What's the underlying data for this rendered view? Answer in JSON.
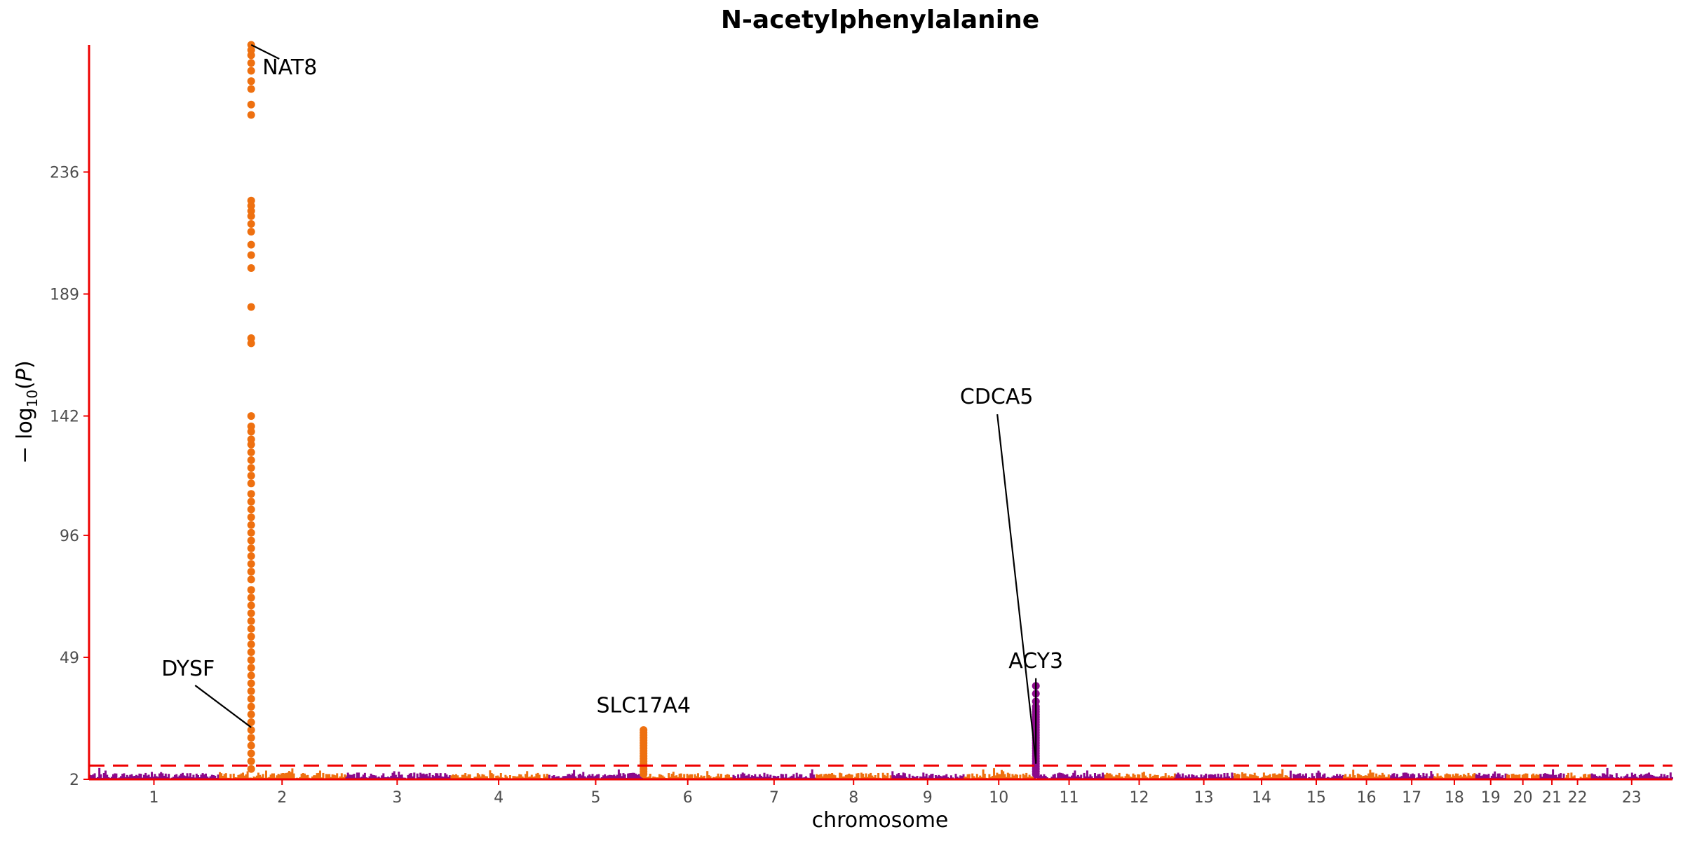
{
  "chart_data": {
    "type": "scatter",
    "title": "N-acetylphenylalanine",
    "xlabel": "chromosome",
    "ylabel": "-log10(P)",
    "ylim": [
      2,
      285
    ],
    "yticks": [
      2,
      49,
      96,
      142,
      189,
      236
    ],
    "significance_line": 7.3,
    "grid": false,
    "colors": {
      "odd": "#8b0a8b",
      "even": "#ee7010",
      "axis": "#ee0000",
      "threshold": "#ee0000"
    },
    "chromosomes": [
      "1",
      "2",
      "3",
      "4",
      "5",
      "6",
      "7",
      "8",
      "9",
      "10",
      "11",
      "12",
      "13",
      "14",
      "15",
      "16",
      "17",
      "18",
      "19",
      "20",
      "21",
      "22",
      "23"
    ],
    "chromosome_spans": [
      [
        0,
        248
      ],
      [
        248,
        490
      ],
      [
        490,
        688
      ],
      [
        688,
        878
      ],
      [
        878,
        1059
      ],
      [
        1059,
        1230
      ],
      [
        1230,
        1389
      ],
      [
        1389,
        1534
      ],
      [
        1534,
        1672
      ],
      [
        1672,
        1806
      ],
      [
        1806,
        1941
      ],
      [
        1941,
        2074
      ],
      [
        2074,
        2188
      ],
      [
        2188,
        2295
      ],
      [
        2295,
        2397
      ],
      [
        2397,
        2487
      ],
      [
        2487,
        2570
      ],
      [
        2570,
        2650
      ],
      [
        2650,
        2709
      ],
      [
        2709,
        2773
      ],
      [
        2773,
        2820
      ],
      [
        2820,
        2871
      ],
      [
        2871,
        3027
      ]
    ],
    "peaks": [
      {
        "chromosome": "2",
        "position": 310,
        "max": 285,
        "values": [
          285,
          283,
          281,
          278,
          275,
          271,
          268,
          262,
          258,
          225,
          223,
          221,
          219,
          216,
          213,
          208,
          204,
          199,
          184,
          172,
          170,
          142,
          138,
          136,
          133,
          131,
          128,
          125,
          122,
          119,
          116,
          112,
          109,
          106,
          103,
          100,
          97,
          94,
          91,
          88,
          85,
          82,
          79,
          75,
          72,
          69,
          66,
          63,
          60,
          57,
          54,
          51,
          48,
          45,
          42,
          39,
          36,
          33,
          30,
          27,
          24,
          21,
          18,
          15,
          12,
          9,
          6
        ]
      },
      {
        "chromosome": "6",
        "position": 1060,
        "max": 21,
        "values": [
          21,
          20,
          19,
          18,
          17,
          16,
          15,
          14,
          13,
          12,
          11,
          10,
          9,
          8,
          7,
          6,
          5,
          4
        ]
      },
      {
        "chromosome": "11",
        "position": 1810,
        "max": 38,
        "values": [
          38,
          35,
          32,
          30,
          29,
          28,
          27,
          26,
          25,
          24,
          23,
          22,
          21,
          20,
          19,
          18,
          17,
          16,
          15,
          14,
          13,
          12,
          11,
          10,
          9,
          8,
          7,
          6,
          5,
          4
        ]
      }
    ],
    "annotations": [
      {
        "label": "NAT8",
        "chromosome": "2",
        "target_y": 285
      },
      {
        "label": "DYSF",
        "chromosome": "2",
        "target_y": 22
      },
      {
        "label": "SLC17A4",
        "chromosome": "6",
        "target_y": 21
      },
      {
        "label": "CDCA5",
        "chromosome": "11",
        "target_y": 9
      },
      {
        "label": "ACY3",
        "chromosome": "11",
        "target_y": 8
      }
    ]
  }
}
